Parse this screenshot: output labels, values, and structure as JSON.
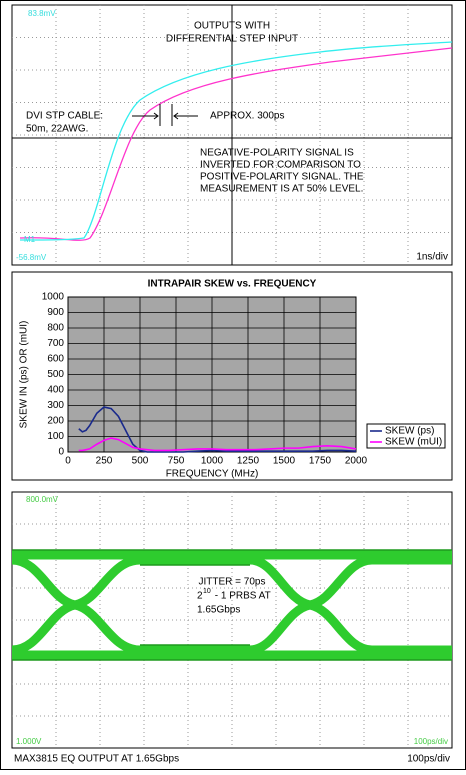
{
  "scope_top": {
    "title_lines": [
      "OUTPUTS WITH",
      "DIFFERENTIAL STEP INPUT"
    ],
    "cable_lines": [
      "DVI STP CABLE:",
      "50m, 22AWG."
    ],
    "approx": "APPROX. 300ps",
    "note_lines": [
      "NEGATIVE-POLARITY SIGNAL IS",
      "INVERTED FOR COMPARISON TO",
      "POSITIVE-POLARITY SIGNAL. THE",
      "MEASUREMENT IS AT 50% LEVEL."
    ],
    "top_ref": "83.8mV",
    "bottom_ref": "-56.8mV",
    "marker": "M1",
    "timebase": "1ns/div"
  },
  "chart_data": {
    "type": "line",
    "title": "INTRAPAIR SKEW vs. FREQUENCY",
    "x_label": "FREQUENCY (MHz)",
    "y_label": "SKEW IN (ps) OR (mUI)",
    "x": [
      75,
      100,
      125,
      150,
      200,
      250,
      300,
      350,
      400,
      450,
      500,
      550,
      600,
      700,
      800,
      900,
      1000,
      1100,
      1200,
      1300,
      1400,
      1500,
      1600,
      1700,
      1800,
      1900,
      2000
    ],
    "series": [
      {
        "name": "SKEW (ps)",
        "color": "#1a2a8c",
        "values": [
          150,
          130,
          140,
          170,
          250,
          290,
          280,
          230,
          140,
          50,
          10,
          0,
          0,
          0,
          0,
          5,
          10,
          5,
          5,
          5,
          5,
          5,
          5,
          5,
          10,
          10,
          5
        ]
      },
      {
        "name": "SKEW (mUI)",
        "color": "#ff00ff",
        "values": [
          10,
          10,
          15,
          20,
          50,
          75,
          90,
          80,
          55,
          30,
          20,
          15,
          10,
          10,
          15,
          20,
          20,
          15,
          15,
          15,
          20,
          25,
          25,
          35,
          40,
          35,
          20
        ]
      }
    ],
    "xlim": [
      0,
      2000
    ],
    "xticks": [
      0,
      250,
      500,
      750,
      1000,
      1250,
      1500,
      1750,
      2000
    ],
    "ylim": [
      0,
      1000
    ],
    "yticks": [
      0,
      100,
      200,
      300,
      400,
      500,
      600,
      700,
      800,
      900,
      1000
    ],
    "grid": true,
    "plot_background": "#a6a6a6",
    "legend_position": "right"
  },
  "scope_bottom": {
    "top_ref": "800.0mV",
    "bottom_ref": "1.000V",
    "timebase_inner": "100ps/div",
    "jitter": "JITTER = 70ps",
    "prbs_base": "2",
    "prbs_exp": "10",
    "prbs_rest": " - 1 PRBS AT",
    "rate": "1.65Gbps",
    "caption": "MAX3815 EQ OUTPUT AT 1.65Gbps",
    "timebase": "100ps/div"
  }
}
